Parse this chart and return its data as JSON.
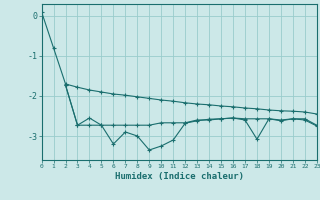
{
  "xlabel": "Humidex (Indice chaleur)",
  "background_color": "#cce8e8",
  "grid_color": "#99cccc",
  "line_color": "#1a6e6e",
  "x_min": 0,
  "x_max": 23,
  "y_min": -3.6,
  "y_max": 0.3,
  "yticks": [
    0,
    -1,
    -2,
    -3
  ],
  "xticks": [
    0,
    1,
    2,
    3,
    4,
    5,
    6,
    7,
    8,
    9,
    10,
    11,
    12,
    13,
    14,
    15,
    16,
    17,
    18,
    19,
    20,
    21,
    22,
    23
  ],
  "line1_x": [
    0,
    1,
    2,
    3,
    4,
    5,
    6,
    7,
    8,
    9,
    10,
    11,
    12,
    13,
    14,
    15,
    16,
    17,
    18,
    19,
    20,
    21,
    22,
    23
  ],
  "line1_y": [
    0.1,
    -0.8,
    -1.7,
    -1.78,
    -1.85,
    -1.9,
    -1.95,
    -1.98,
    -2.02,
    -2.06,
    -2.1,
    -2.13,
    -2.17,
    -2.2,
    -2.22,
    -2.25,
    -2.27,
    -2.3,
    -2.32,
    -2.35,
    -2.37,
    -2.38,
    -2.4,
    -2.45
  ],
  "line2_x": [
    2,
    3,
    4,
    5,
    6,
    7,
    8,
    9,
    10,
    11,
    12,
    13,
    14,
    15,
    16,
    17,
    18,
    19,
    20,
    21,
    22,
    23
  ],
  "line2_y": [
    -1.73,
    -2.73,
    -2.55,
    -2.73,
    -3.2,
    -2.9,
    -3.0,
    -3.35,
    -3.25,
    -3.1,
    -2.68,
    -2.62,
    -2.58,
    -2.57,
    -2.55,
    -2.6,
    -3.08,
    -2.57,
    -2.62,
    -2.57,
    -2.6,
    -2.75
  ],
  "line3_x": [
    2,
    3,
    4,
    5,
    6,
    7,
    8,
    9,
    10,
    11,
    12,
    13,
    14,
    15,
    16,
    17,
    18,
    19,
    20,
    21,
    22,
    23
  ],
  "line3_y": [
    -1.73,
    -2.73,
    -2.73,
    -2.73,
    -2.73,
    -2.73,
    -2.73,
    -2.73,
    -2.67,
    -2.67,
    -2.67,
    -2.6,
    -2.6,
    -2.57,
    -2.55,
    -2.57,
    -2.57,
    -2.57,
    -2.6,
    -2.57,
    -2.57,
    -2.73
  ]
}
